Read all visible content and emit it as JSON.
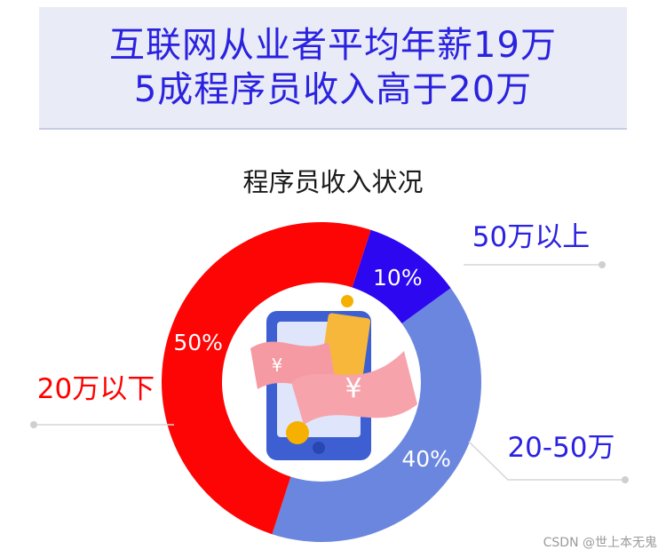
{
  "headline": {
    "line1": "互联网从业者平均年薪19万",
    "line2": "5成程序员收入高于20万"
  },
  "chart_data": {
    "type": "pie",
    "title": "程序员收入状况",
    "categories": [
      "50万以上",
      "20-50万",
      "20万以下"
    ],
    "values": [
      10,
      40,
      50
    ],
    "value_labels": [
      "10%",
      "40%",
      "50%"
    ],
    "colors": [
      "#2d07f0",
      "#6a86de",
      "#fd0505"
    ],
    "label_colors": [
      "#2a22e0",
      "#2a22e0",
      "#ff0000"
    ],
    "donut": true
  },
  "watermark": "CSDN @世上本无鬼"
}
